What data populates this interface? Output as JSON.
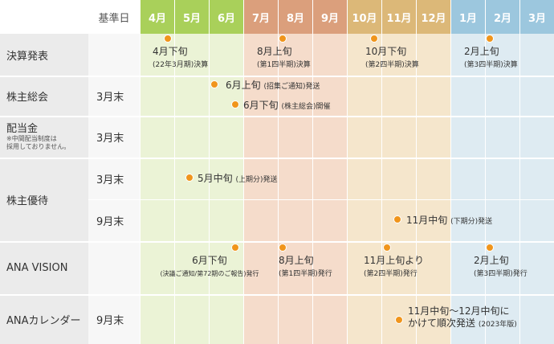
{
  "header": {
    "basis_label": "基準日",
    "months": [
      "4月",
      "5月",
      "6月",
      "7月",
      "8月",
      "9月",
      "10月",
      "11月",
      "12月",
      "1月",
      "2月",
      "3月"
    ]
  },
  "colors": {
    "q1_head": "#a9d05a",
    "q2_head": "#db9f7c",
    "q3_head": "#dcb878",
    "q4_head": "#9cc7de",
    "q1_body": "#ebf3d6",
    "q2_body": "#f5dccb",
    "q3_body": "#f5e6cc",
    "q4_body": "#deebf2",
    "label_col": "#ebebeb",
    "dot": "#f0951c"
  },
  "rows": {
    "settlement": {
      "label": "決算発表",
      "basis": ""
    },
    "agm": {
      "label": "株主総会",
      "basis": "3月末"
    },
    "dividend": {
      "label": "配当金",
      "note_line1": "※中間配当制度は",
      "note_line2": "採用しておりません。",
      "basis": "3月末"
    },
    "benefit": {
      "label": "株主優待",
      "basis_1": "3月末",
      "basis_2": "9月末"
    },
    "ana_vision": {
      "label": "ANA VISION",
      "basis": ""
    },
    "ana_calendar": {
      "label": "ANAカレンダー",
      "basis": "9月末"
    }
  },
  "events": {
    "settle_q4": {
      "main": "4月下旬",
      "sub": "(22年3月期)決算"
    },
    "settle_q1": {
      "main": "8月上旬",
      "sub": "(第1四半期)決算"
    },
    "settle_q2": {
      "main": "10月下旬",
      "sub": "(第2四半期)決算"
    },
    "settle_q3": {
      "main": "2月上旬",
      "sub": "(第3四半期)決算"
    },
    "agm_notice": {
      "main": "6月上旬",
      "sub": "(招集ご通知)発送"
    },
    "agm_held": {
      "main": "6月下旬",
      "sub": "(株主総会)開催"
    },
    "benefit_first": {
      "main": "5月中旬",
      "sub": "(上期分)発送"
    },
    "benefit_second": {
      "main": "11月中旬",
      "sub": "(下期分)発送"
    },
    "vision_june": {
      "main": "6月下旬",
      "sub": "(決議ご通知/第72期のご報告)発行"
    },
    "vision_aug": {
      "main": "8月上旬",
      "sub": "(第1四半期)発行"
    },
    "vision_nov": {
      "main": "11月上旬より",
      "sub": "(第2四半期)発行"
    },
    "vision_feb": {
      "main": "2月上旬",
      "sub": "(第3四半期)発行"
    },
    "calendar_ship": {
      "main_line1": "11月中旬〜12月中旬に",
      "main_line2": "かけて順次発送",
      "sub": "(2023年版)"
    }
  }
}
